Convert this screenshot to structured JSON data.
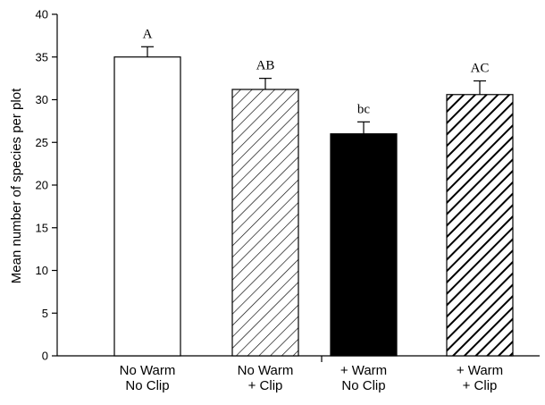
{
  "chart_data": {
    "type": "bar",
    "title": "",
    "xlabel": "",
    "ylabel": "Mean number of species per plot",
    "ylim": [
      0,
      40
    ],
    "yticks": [
      0,
      5,
      10,
      15,
      20,
      25,
      30,
      35,
      40
    ],
    "grid": false,
    "categories": [
      [
        "No Warm",
        "No Clip"
      ],
      [
        "No Warm",
        "+ Clip"
      ],
      [
        "+ Warm",
        "No Clip"
      ],
      [
        "+ Warm",
        "+ Clip"
      ]
    ],
    "values": [
      35.0,
      31.2,
      26.0,
      30.6
    ],
    "errors": [
      1.2,
      1.3,
      1.4,
      1.6
    ],
    "significance_labels": [
      "A",
      "AB",
      "bc",
      "AC"
    ],
    "fills": [
      "open",
      "hatched-fine",
      "solid",
      "hatched-bold"
    ],
    "colors": {
      "bar_edge": "#000000",
      "solid_fill": "#000000",
      "open_fill": "#ffffff"
    }
  }
}
